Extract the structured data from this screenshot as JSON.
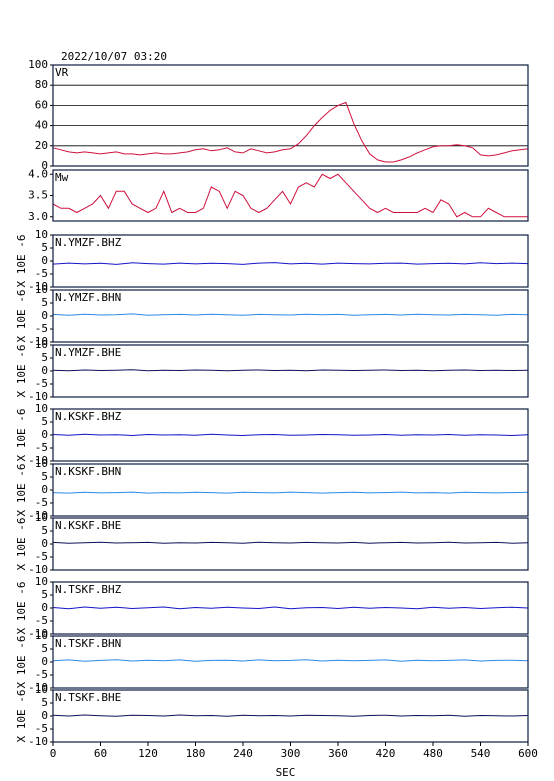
{
  "chart_data": [
    {
      "type": "line",
      "title": "2022/10/07 03:20",
      "label": "VR",
      "color": "#d0103c",
      "grid": true,
      "xlim": [
        0,
        600
      ],
      "ylim": [
        0,
        100
      ],
      "yticks": [
        0,
        20,
        40,
        60,
        80,
        100
      ],
      "x": [
        0,
        10,
        20,
        30,
        40,
        50,
        60,
        70,
        80,
        90,
        100,
        110,
        120,
        130,
        140,
        150,
        160,
        170,
        180,
        190,
        200,
        210,
        220,
        230,
        240,
        250,
        260,
        270,
        280,
        290,
        300,
        310,
        320,
        330,
        340,
        350,
        360,
        370,
        380,
        390,
        400,
        410,
        420,
        430,
        440,
        450,
        460,
        470,
        480,
        490,
        500,
        510,
        520,
        530,
        540,
        550,
        560,
        570,
        580,
        590,
        600
      ],
      "values": [
        18,
        16,
        14,
        13,
        14,
        13,
        12,
        13,
        14,
        12,
        12,
        11,
        12,
        13,
        12,
        12,
        13,
        14,
        16,
        17,
        15,
        16,
        18,
        14,
        13,
        17,
        15,
        13,
        14,
        16,
        17,
        22,
        30,
        40,
        48,
        55,
        60,
        63,
        42,
        25,
        12,
        6,
        4,
        4,
        6,
        9,
        13,
        16,
        19,
        20,
        20,
        21,
        20,
        18,
        11,
        10,
        11,
        13,
        15,
        16,
        17
      ]
    },
    {
      "type": "line",
      "label": "Mw",
      "color": "#d0103c",
      "grid": false,
      "xlim": [
        0,
        600
      ],
      "ylim": [
        2.9,
        4.1
      ],
      "yticks": [
        {
          "value": 3,
          "label": "3.0"
        },
        {
          "value": 3.5,
          "label": "3.5"
        },
        {
          "value": 4,
          "label": "4.0"
        }
      ],
      "x": [
        0,
        10,
        20,
        30,
        40,
        50,
        60,
        70,
        80,
        90,
        100,
        110,
        120,
        130,
        140,
        150,
        160,
        170,
        180,
        190,
        200,
        210,
        220,
        230,
        240,
        250,
        260,
        270,
        280,
        290,
        300,
        310,
        320,
        330,
        340,
        350,
        360,
        370,
        380,
        390,
        400,
        410,
        420,
        430,
        440,
        450,
        460,
        470,
        480,
        490,
        500,
        510,
        520,
        530,
        540,
        550,
        560,
        570,
        580,
        590,
        600
      ],
      "values": [
        3.3,
        3.2,
        3.2,
        3.1,
        3.2,
        3.3,
        3.5,
        3.2,
        3.6,
        3.6,
        3.3,
        3.2,
        3.1,
        3.2,
        3.6,
        3.1,
        3.2,
        3.1,
        3.1,
        3.2,
        3.7,
        3.6,
        3.2,
        3.6,
        3.5,
        3.2,
        3.1,
        3.2,
        3.4,
        3.6,
        3.3,
        3.7,
        3.8,
        3.7,
        4.0,
        3.9,
        4.0,
        3.8,
        3.6,
        3.4,
        3.2,
        3.1,
        3.2,
        3.1,
        3.1,
        3.1,
        3.1,
        3.2,
        3.1,
        3.4,
        3.3,
        3.0,
        3.1,
        3.0,
        3.0,
        3.2,
        3.1,
        3.0,
        3.0,
        3.0,
        3.0
      ]
    },
    {
      "type": "line",
      "label": "N.YMZF.BHZ",
      "ylabel": "X 10E -6",
      "color": "#1414c8",
      "xlim": [
        0,
        600
      ],
      "ylim": [
        -10,
        10
      ],
      "yticks": [
        -10,
        -5,
        0,
        5,
        10
      ],
      "x": [
        0,
        20,
        40,
        60,
        80,
        100,
        120,
        140,
        160,
        180,
        200,
        220,
        240,
        260,
        280,
        300,
        320,
        340,
        360,
        380,
        400,
        420,
        440,
        460,
        480,
        500,
        520,
        540,
        560,
        580,
        600
      ],
      "values": [
        -1.2,
        -0.8,
        -1.1,
        -0.9,
        -1.3,
        -0.7,
        -1,
        -1.2,
        -0.8,
        -1.1,
        -0.9,
        -1,
        -1.3,
        -0.8,
        -0.6,
        -1.1,
        -0.9,
        -1.2,
        -0.8,
        -1,
        -1.1,
        -0.9,
        -0.8,
        -1.2,
        -1,
        -0.9,
        -1.1,
        -0.7,
        -1,
        -0.8,
        -1
      ]
    },
    {
      "type": "line",
      "label": "N.YMZF.BHN",
      "ylabel": "X 10E -6",
      "color": "#2a8ae6",
      "xlim": [
        0,
        600
      ],
      "ylim": [
        -10,
        10
      ],
      "yticks": [
        -10,
        -5,
        0,
        5,
        10
      ],
      "x": [
        0,
        20,
        40,
        60,
        80,
        100,
        120,
        140,
        160,
        180,
        200,
        220,
        240,
        260,
        280,
        300,
        320,
        340,
        360,
        380,
        400,
        420,
        440,
        460,
        480,
        500,
        520,
        540,
        560,
        580,
        600
      ],
      "values": [
        0.6,
        0.3,
        0.7,
        0.4,
        0.5,
        0.8,
        0.3,
        0.5,
        0.6,
        0.4,
        0.7,
        0.5,
        0.3,
        0.6,
        0.5,
        0.4,
        0.7,
        0.5,
        0.6,
        0.3,
        0.5,
        0.6,
        0.4,
        0.7,
        0.5,
        0.4,
        0.6,
        0.5,
        0.3,
        0.6,
        0.5
      ]
    },
    {
      "type": "line",
      "label": "N.YMZF.BHE",
      "ylabel": "X 10E -6",
      "color": "#10105a",
      "xlim": [
        0,
        600
      ],
      "ylim": [
        -10,
        10
      ],
      "yticks": [
        -10,
        -5,
        0,
        5,
        10
      ],
      "x": [
        0,
        20,
        40,
        60,
        80,
        100,
        120,
        140,
        160,
        180,
        200,
        220,
        240,
        260,
        280,
        300,
        320,
        340,
        360,
        380,
        400,
        420,
        440,
        460,
        480,
        500,
        520,
        540,
        560,
        580,
        600
      ],
      "values": [
        0.3,
        0.1,
        0.4,
        0.2,
        0.3,
        0.5,
        0.1,
        0.3,
        0.2,
        0.4,
        0.3,
        0.1,
        0.3,
        0.4,
        0.2,
        0.3,
        0.1,
        0.4,
        0.3,
        0.2,
        0.3,
        0.4,
        0.2,
        0.3,
        0.1,
        0.3,
        0.4,
        0.2,
        0.3,
        0.2,
        0.3
      ]
    },
    {
      "type": "line",
      "label": "N.KSKF.BHZ",
      "ylabel": "X 10E -6",
      "color": "#1414c8",
      "xlim": [
        0,
        600
      ],
      "ylim": [
        -10,
        10
      ],
      "yticks": [
        -10,
        -5,
        0,
        5,
        10
      ],
      "x": [
        0,
        20,
        40,
        60,
        80,
        100,
        120,
        140,
        160,
        180,
        200,
        220,
        240,
        260,
        280,
        300,
        320,
        340,
        360,
        380,
        400,
        420,
        440,
        460,
        480,
        500,
        520,
        540,
        560,
        580,
        600
      ],
      "values": [
        0.2,
        -0.1,
        0.3,
        0,
        0.1,
        -0.2,
        0.2,
        0,
        0.1,
        -0.1,
        0.3,
        0,
        -0.2,
        0.1,
        0.2,
        -0.1,
        0,
        0.2,
        0.1,
        -0.1,
        0,
        0.2,
        -0.1,
        0.1,
        0,
        0.2,
        -0.1,
        0.1,
        0,
        -0.2,
        0.1
      ]
    },
    {
      "type": "line",
      "label": "N.KSKF.BHN",
      "ylabel": "X 10E -6",
      "color": "#2a8ae6",
      "xlim": [
        0,
        600
      ],
      "ylim": [
        -10,
        10
      ],
      "yticks": [
        -10,
        -5,
        0,
        5,
        10
      ],
      "x": [
        0,
        20,
        40,
        60,
        80,
        100,
        120,
        140,
        160,
        180,
        200,
        220,
        240,
        260,
        280,
        300,
        320,
        340,
        360,
        380,
        400,
        420,
        440,
        460,
        480,
        500,
        520,
        540,
        560,
        580,
        600
      ],
      "values": [
        -1,
        -1.2,
        -0.9,
        -1.1,
        -1,
        -0.8,
        -1.2,
        -1,
        -1.1,
        -0.9,
        -1,
        -1.2,
        -0.9,
        -1,
        -1.1,
        -0.8,
        -1,
        -1.2,
        -1,
        -0.9,
        -1.1,
        -1,
        -0.8,
        -1.1,
        -1,
        -1.2,
        -0.9,
        -1,
        -1.1,
        -1,
        -0.9
      ]
    },
    {
      "type": "line",
      "label": "N.KSKF.BHE",
      "ylabel": "X 10E -6",
      "color": "#10105a",
      "xlim": [
        0,
        600
      ],
      "ylim": [
        -10,
        10
      ],
      "yticks": [
        -10,
        -5,
        0,
        5,
        10
      ],
      "x": [
        0,
        20,
        40,
        60,
        80,
        100,
        120,
        140,
        160,
        180,
        200,
        220,
        240,
        260,
        280,
        300,
        320,
        340,
        360,
        380,
        400,
        420,
        440,
        460,
        480,
        500,
        520,
        540,
        560,
        580,
        600
      ],
      "values": [
        0.6,
        0.3,
        0.5,
        0.7,
        0.4,
        0.5,
        0.6,
        0.3,
        0.5,
        0.4,
        0.6,
        0.5,
        0.3,
        0.7,
        0.5,
        0.4,
        0.6,
        0.5,
        0.4,
        0.6,
        0.3,
        0.5,
        0.6,
        0.4,
        0.5,
        0.7,
        0.4,
        0.5,
        0.6,
        0.3,
        0.5
      ]
    },
    {
      "type": "line",
      "label": "N.TSKF.BHZ",
      "ylabel": "X 10E -6",
      "color": "#1414c8",
      "xlim": [
        0,
        600
      ],
      "ylim": [
        -10,
        10
      ],
      "yticks": [
        -10,
        -5,
        0,
        5,
        10
      ],
      "x": [
        0,
        20,
        40,
        60,
        80,
        100,
        120,
        140,
        160,
        180,
        200,
        220,
        240,
        260,
        280,
        300,
        320,
        340,
        360,
        380,
        400,
        420,
        440,
        460,
        480,
        500,
        520,
        540,
        560,
        580,
        600
      ],
      "values": [
        0.2,
        -0.3,
        0.4,
        -0.1,
        0.3,
        -0.2,
        0.1,
        0.4,
        -0.3,
        0.2,
        -0.1,
        0.3,
        0,
        -0.2,
        0.4,
        -0.3,
        0.1,
        0.2,
        -0.2,
        0.3,
        -0.1,
        0.2,
        0,
        -0.3,
        0.3,
        -0.1,
        0.2,
        -0.2,
        0.1,
        0.3,
        0
      ]
    },
    {
      "type": "line",
      "label": "N.TSKF.BHN",
      "ylabel": "X 10E -6",
      "color": "#2a8ae6",
      "xlim": [
        0,
        600
      ],
      "ylim": [
        -10,
        10
      ],
      "yticks": [
        -10,
        -5,
        0,
        5,
        10
      ],
      "x": [
        0,
        20,
        40,
        60,
        80,
        100,
        120,
        140,
        160,
        180,
        200,
        220,
        240,
        260,
        280,
        300,
        320,
        340,
        360,
        380,
        400,
        420,
        440,
        460,
        480,
        500,
        520,
        540,
        560,
        580,
        600
      ],
      "values": [
        0.5,
        0.8,
        0.3,
        0.6,
        0.9,
        0.4,
        0.7,
        0.5,
        0.8,
        0.3,
        0.6,
        0.7,
        0.4,
        0.8,
        0.5,
        0.6,
        0.9,
        0.4,
        0.7,
        0.5,
        0.6,
        0.8,
        0.3,
        0.7,
        0.5,
        0.6,
        0.8,
        0.4,
        0.6,
        0.7,
        0.5
      ]
    },
    {
      "type": "line",
      "label": "N.TSKF.BHE",
      "ylabel": "X 10E -6",
      "xlabel": "SEC",
      "color": "#10105a",
      "xlim": [
        0,
        600
      ],
      "ylim": [
        -10,
        10
      ],
      "yticks": [
        -10,
        -5,
        0,
        5,
        10
      ],
      "xticks": [
        0,
        60,
        120,
        180,
        240,
        300,
        360,
        420,
        480,
        540,
        600
      ],
      "x": [
        0,
        20,
        40,
        60,
        80,
        100,
        120,
        140,
        160,
        180,
        200,
        220,
        240,
        260,
        280,
        300,
        320,
        340,
        360,
        380,
        400,
        420,
        440,
        460,
        480,
        500,
        520,
        540,
        560,
        580,
        600
      ],
      "values": [
        0.3,
        0,
        0.4,
        0.1,
        -0.1,
        0.3,
        0.2,
        0,
        0.4,
        0.1,
        0.2,
        -0.1,
        0.3,
        0.1,
        0.2,
        0,
        0.3,
        0.2,
        0.1,
        -0.1,
        0.2,
        0.3,
        0,
        0.2,
        0.1,
        0.3,
        -0.1,
        0.2,
        0.1,
        0,
        0.2
      ]
    }
  ]
}
